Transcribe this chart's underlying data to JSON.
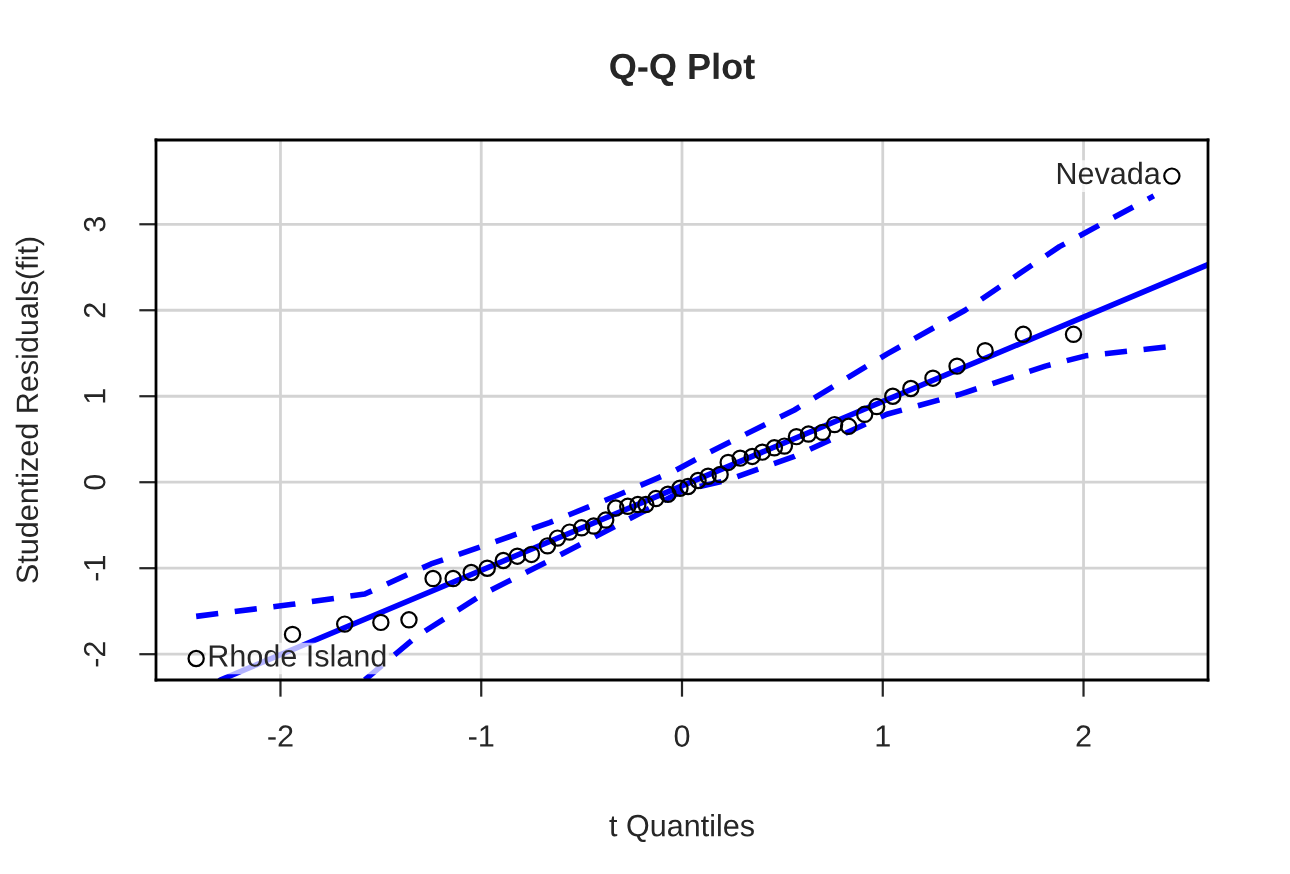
{
  "chart_data": {
    "type": "scatter",
    "title": "Q-Q Plot",
    "xlabel": "t Quantiles",
    "ylabel": "Studentized Residuals(fit)",
    "xlim": [
      -2.62,
      2.62
    ],
    "ylim": [
      -2.3,
      3.98
    ],
    "xticks": [
      -2,
      -1,
      0,
      1,
      2
    ],
    "yticks": [
      -2,
      -1,
      0,
      1,
      2,
      3
    ],
    "grid": true,
    "series": [
      {
        "color": "#000000",
        "marker": "circle",
        "x": [
          -2.42,
          -1.94,
          -1.68,
          -1.5,
          -1.36,
          -1.24,
          -1.14,
          -1.05,
          -0.97,
          -0.89,
          -0.82,
          -0.75,
          -0.67,
          -0.62,
          -0.56,
          -0.5,
          -0.44,
          -0.38,
          -0.33,
          -0.27,
          -0.22,
          -0.18,
          -0.13,
          -0.07,
          -0.01,
          0.03,
          0.08,
          0.13,
          0.19,
          0.23,
          0.29,
          0.35,
          0.4,
          0.46,
          0.51,
          0.57,
          0.63,
          0.7,
          0.76,
          0.83,
          0.91,
          0.97,
          1.05,
          1.14,
          1.25,
          1.37,
          1.51,
          1.7,
          1.95,
          2.44
        ],
        "values": [
          -2.05,
          -1.77,
          -1.65,
          -1.63,
          -1.6,
          -1.12,
          -1.12,
          -1.05,
          -1.0,
          -0.91,
          -0.86,
          -0.84,
          -0.74,
          -0.65,
          -0.58,
          -0.53,
          -0.51,
          -0.44,
          -0.3,
          -0.28,
          -0.26,
          -0.26,
          -0.19,
          -0.14,
          -0.07,
          -0.05,
          0.02,
          0.07,
          0.09,
          0.23,
          0.28,
          0.3,
          0.35,
          0.4,
          0.42,
          0.53,
          0.56,
          0.58,
          0.67,
          0.65,
          0.79,
          0.88,
          1.0,
          1.09,
          1.21,
          1.35,
          1.53,
          1.72,
          1.72,
          3.56
        ]
      },
      {
        "type": "line",
        "color": "#0000ff",
        "marker": "none",
        "line_style": "solid",
        "x": [
          -2.3,
          2.62
        ],
        "values": [
          -2.3,
          2.53
        ]
      },
      {
        "type": "line",
        "color": "#0000ff",
        "marker": "none",
        "line_style": "dashed",
        "x": [
          -2.42,
          -1.94,
          -1.58,
          -1.25,
          -0.99,
          -0.66,
          -0.33,
          -0.03,
          0.12,
          0.56,
          1.02,
          1.41,
          1.88,
          2.35
        ],
        "values": [
          -1.56,
          -1.42,
          -1.3,
          -0.95,
          -0.74,
          -0.47,
          -0.16,
          0.14,
          0.33,
          0.84,
          1.49,
          2.0,
          2.74,
          3.33
        ]
      },
      {
        "type": "line",
        "color": "#0000ff",
        "marker": "none",
        "line_style": "dashed",
        "x": [
          -1.58,
          -1.32,
          -0.99,
          -0.66,
          -0.33,
          0.01,
          0.22,
          0.56,
          1.02,
          1.38,
          1.81,
          2.01,
          2.44
        ],
        "values": [
          -2.3,
          -1.79,
          -1.3,
          -0.91,
          -0.51,
          -0.09,
          0.02,
          0.3,
          0.79,
          1.02,
          1.35,
          1.47,
          1.58
        ]
      }
    ],
    "annotations": [
      {
        "text": "Rhode Island",
        "x": -2.42,
        "y": -2.05
      },
      {
        "text": "Nevada",
        "x": 2.44,
        "y": 3.56
      }
    ]
  }
}
